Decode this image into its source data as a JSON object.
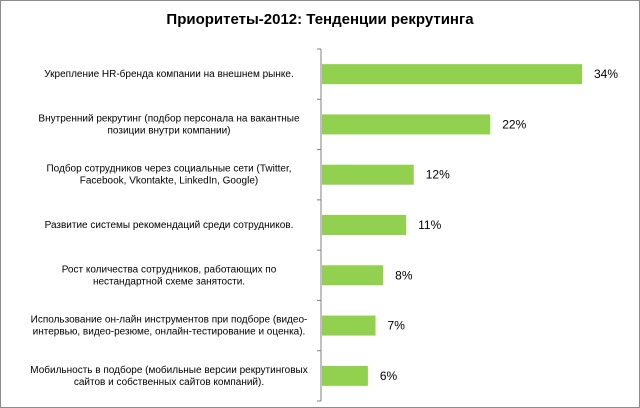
{
  "chart_data": {
    "type": "bar",
    "orientation": "horizontal",
    "title": "Приоритеты-2012: Тенденции рекрутинга",
    "categories": [
      [
        "Укрепление HR-бренда компании на внешнем рынке."
      ],
      [
        "Внутренний рекрутинг (подбор персонала на вакантные",
        "позиции внутри компании)"
      ],
      [
        "Подбор сотрудников через социальные сети (Twitter,",
        "Facebook, Vkontakte, LinkedIn, Google)"
      ],
      [
        "Развитие системы рекомендаций среди сотрудников."
      ],
      [
        "Рост количества сотрудников, работающих по",
        "нестандартной схеме занятости."
      ],
      [
        "Использование он-лайн инструментов при подборе (видео-",
        "интервью, видео-резюме, онлайн-тестирование и оценка)."
      ],
      [
        "Мобильность в подборе (мобильные версии рекрутинговых",
        "сайтов и собственных сайтов компаний)."
      ]
    ],
    "values": [
      34,
      22,
      12,
      11,
      8,
      7,
      6
    ],
    "value_labels": [
      "34%",
      "22%",
      "12%",
      "11%",
      "8%",
      "7%",
      "6%"
    ],
    "xlim": [
      0,
      34
    ],
    "bar_color": "#92d050",
    "axis_color": "#808080",
    "grid": false,
    "legend": "none"
  }
}
